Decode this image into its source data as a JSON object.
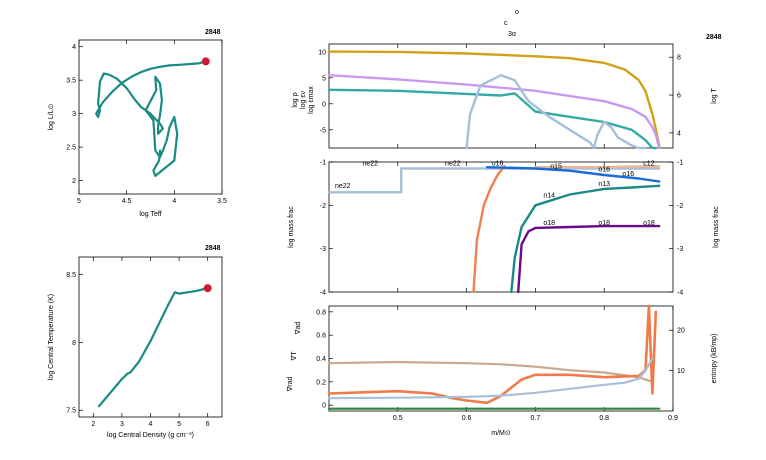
{
  "header": {
    "model_number_hr": "2848",
    "model_number_tc": "2848",
    "model_number_main": "2848",
    "top_annotation_line1": "o",
    "top_annotation_line2": "c",
    "top_annotation_line3": "3α"
  },
  "colors": {
    "teal": "#1a8a85",
    "red_dot": "#d01a3a",
    "logRho": "#c79af0",
    "epsNuc": "#33aaa3",
    "epsMax": "#a8bfd8",
    "logT": "#d4a01a",
    "ne22": "#a8bfd8",
    "c12": "#e8b898",
    "o16_cap": "#f08050",
    "n15": "#1a6ad8",
    "n14": "#1a8a85",
    "o18": "#6a0a8a",
    "grad_ad": "#c8a890",
    "grad_rad": "#f07a4a",
    "entropy": "#a8bfd8",
    "green_line": "#2a8a3a"
  },
  "chart_data": [
    {
      "id": "hr",
      "type": "line",
      "xlabel": "log Teff",
      "ylabel": "log L/L⊙",
      "xlim": [
        5.0,
        3.5
      ],
      "ylim": [
        1.8,
        4.1
      ],
      "xticks": [
        "5",
        "4.5",
        "4",
        "3.5"
      ],
      "yticks": [
        "2",
        "2.5",
        "3",
        "3.5",
        "4"
      ],
      "series": [
        {
          "x": [
            3.67,
            3.75,
            3.85,
            3.95,
            4.05,
            4.15,
            4.25,
            4.35,
            4.45,
            4.55,
            4.65,
            4.75,
            4.82,
            4.8,
            4.78,
            4.8,
            4.79,
            4.78,
            4.74,
            4.68,
            4.6,
            4.5,
            4.42,
            4.35,
            4.25,
            4.15,
            4.12,
            4.17,
            4.17,
            4.15,
            4.13,
            4.15,
            4.2,
            4.19,
            4.3,
            4.22,
            4.2,
            4.15,
            4.12,
            4.08,
            4.05,
            4.0,
            3.97,
            4.0,
            4.2,
            4.22,
            4.16,
            4.15
          ],
          "y": [
            3.78,
            3.75,
            3.74,
            3.73,
            3.72,
            3.7,
            3.67,
            3.62,
            3.55,
            3.46,
            3.33,
            3.17,
            3.0,
            2.95,
            3.05,
            3.15,
            3.3,
            3.48,
            3.6,
            3.58,
            3.52,
            3.38,
            3.22,
            3.1,
            3.0,
            2.85,
            2.78,
            2.7,
            2.82,
            2.98,
            3.2,
            3.45,
            3.55,
            3.35,
            3.05,
            2.9,
            2.45,
            2.35,
            2.45,
            2.6,
            2.8,
            2.95,
            2.7,
            2.3,
            2.07,
            2.15,
            2.3,
            2.45
          ]
        }
      ],
      "current_point": {
        "x": 3.67,
        "y": 3.78
      }
    },
    {
      "id": "tc_rhoc",
      "type": "line",
      "xlabel": "log Central Density (g cm⁻³)",
      "ylabel": "log Central Temperature (K)",
      "xlim": [
        1.5,
        6.5
      ],
      "ylim": [
        7.45,
        8.63
      ],
      "xticks": [
        "2",
        "3",
        "4",
        "5",
        "6"
      ],
      "yticks": [
        "7.5",
        "8",
        "8.5"
      ],
      "series": [
        {
          "x": [
            2.2,
            2.6,
            3.0,
            3.2,
            3.3,
            3.6,
            4.0,
            4.3,
            4.6,
            4.85,
            5.0,
            5.3,
            5.6,
            5.8,
            6.0
          ],
          "y": [
            7.53,
            7.63,
            7.73,
            7.77,
            7.78,
            7.86,
            8.01,
            8.14,
            8.27,
            8.37,
            8.36,
            8.37,
            8.38,
            8.39,
            8.4
          ]
        }
      ],
      "current_point": {
        "x": 6.0,
        "y": 8.4
      }
    },
    {
      "id": "profile_top",
      "type": "line",
      "xlim": [
        0.4,
        0.9
      ],
      "ylim": [
        -8.5,
        11.5
      ],
      "yticks": [
        "-5",
        "0",
        "5",
        "10"
      ],
      "ylim_right": [
        3.2,
        8.7
      ],
      "yticks_right": [
        "4",
        "6",
        "8"
      ],
      "ylabel_left": [
        "log ρ",
        "log εν",
        "log εmax"
      ],
      "ylabel_right": "log T",
      "series": [
        {
          "name": "log T",
          "axis": "right",
          "x": [
            0.4,
            0.5,
            0.6,
            0.7,
            0.75,
            0.8,
            0.83,
            0.85,
            0.86,
            0.87,
            0.875,
            0.88
          ],
          "y": [
            8.3,
            8.28,
            8.2,
            8.05,
            7.95,
            7.7,
            7.35,
            6.8,
            6.2,
            5.0,
            4.2,
            3.3
          ]
        },
        {
          "name": "log ρ",
          "axis": "left",
          "x": [
            0.4,
            0.5,
            0.6,
            0.7,
            0.8,
            0.84,
            0.86,
            0.87,
            0.875,
            0.88
          ],
          "y": [
            5.5,
            4.7,
            3.7,
            2.5,
            0.5,
            -1.0,
            -2.5,
            -4.5,
            -6.0,
            -8.5
          ]
        },
        {
          "name": "log εν",
          "axis": "left",
          "x": [
            0.4,
            0.5,
            0.6,
            0.65,
            0.66,
            0.67,
            0.7,
            0.75,
            0.8,
            0.84,
            0.86,
            0.87,
            0.875
          ],
          "y": [
            2.7,
            2.5,
            1.9,
            1.6,
            1.8,
            2.0,
            -1.5,
            -2.5,
            -3.5,
            -5.0,
            -7.0,
            -8.5,
            -8.5
          ]
        },
        {
          "name": "log εmax",
          "axis": "left",
          "x": [
            0.6,
            0.605,
            0.62,
            0.65,
            0.67,
            0.69,
            0.72,
            0.75,
            0.78,
            0.785,
            0.79,
            0.8,
            0.81,
            0.82,
            0.84,
            0.85,
            0.86
          ],
          "y": [
            -8.5,
            -2.0,
            3.5,
            5.5,
            4.5,
            0.5,
            -2.5,
            -5.0,
            -7.5,
            -8.5,
            -6.0,
            -3.5,
            -4.5,
            -6.5,
            -8.0,
            -8.5,
            -8.5
          ]
        }
      ]
    },
    {
      "id": "mass_frac",
      "type": "line",
      "xlim": [
        0.4,
        0.9
      ],
      "ylim": [
        -4,
        -1
      ],
      "yticks": [
        "-4",
        "-3",
        "-2",
        "-1"
      ],
      "ylabel": "log mass frac",
      "ylabel_right": "log mass frac",
      "series": [
        {
          "name": "ne22",
          "x": [
            0.4,
            0.505,
            0.505,
            0.6,
            0.7,
            0.8,
            0.86,
            0.88
          ],
          "y": [
            -1.7,
            -1.7,
            -1.15,
            -1.15,
            -1.15,
            -1.15,
            -1.15,
            -1.15
          ]
        },
        {
          "name": "c12",
          "x": [
            0.7,
            0.8,
            0.86,
            0.88
          ],
          "y": [
            -1.12,
            -1.12,
            -1.1,
            -1.1
          ]
        },
        {
          "name": "o16",
          "x": [
            0.61,
            0.615,
            0.625,
            0.635,
            0.645,
            0.655
          ],
          "y": [
            -4.0,
            -2.8,
            -2.0,
            -1.6,
            -1.3,
            -1.1
          ]
        },
        {
          "name": "n15",
          "x": [
            0.63,
            0.7,
            0.75,
            0.8,
            0.85,
            0.88
          ],
          "y": [
            -1.12,
            -1.15,
            -1.2,
            -1.3,
            -1.38,
            -1.45
          ]
        },
        {
          "name": "n14",
          "x": [
            0.665,
            0.67,
            0.68,
            0.7,
            0.75,
            0.8,
            0.85,
            0.88
          ],
          "y": [
            -4.0,
            -3.2,
            -2.5,
            -2.0,
            -1.75,
            -1.62,
            -1.58,
            -1.55
          ]
        },
        {
          "name": "o18",
          "x": [
            0.675,
            0.68,
            0.69,
            0.7,
            0.75,
            0.8,
            0.88
          ],
          "y": [
            -4.0,
            -2.9,
            -2.6,
            -2.52,
            -2.5,
            -2.48,
            -2.48
          ]
        }
      ],
      "labels": [
        {
          "text": "ne22",
          "x": 0.42,
          "y": -1.6
        },
        {
          "text": "ne22",
          "x": 0.46,
          "y": -1.08
        },
        {
          "text": "ne22",
          "x": 0.58,
          "y": -1.08
        },
        {
          "text": "o16",
          "x": 0.645,
          "y": -1.08
        },
        {
          "text": "c12",
          "x": 0.865,
          "y": -1.08
        },
        {
          "text": "n15",
          "x": 0.73,
          "y": -1.15
        },
        {
          "text": "o16",
          "x": 0.8,
          "y": -1.22
        },
        {
          "text": "o16",
          "x": 0.835,
          "y": -1.32
        },
        {
          "text": "n13",
          "x": 0.8,
          "y": -1.55
        },
        {
          "text": "n14",
          "x": 0.72,
          "y": -1.82
        },
        {
          "text": "o18",
          "x": 0.72,
          "y": -2.45
        },
        {
          "text": "o18",
          "x": 0.8,
          "y": -2.45
        },
        {
          "text": "o18",
          "x": 0.865,
          "y": -2.45
        }
      ]
    },
    {
      "id": "gradients",
      "type": "line",
      "xlabel": "m/M⊙",
      "xlim": [
        0.4,
        0.9
      ],
      "xticks": [
        "0.5",
        "0.6",
        "0.7",
        "0.8",
        "0.9"
      ],
      "ylim": [
        -0.05,
        0.85
      ],
      "yticks": [
        "0",
        "0.2",
        "0.4",
        "0.6",
        "0.8"
      ],
      "ylim_right": [
        0,
        26
      ],
      "yticks_right": [
        "10",
        "20"
      ],
      "ylabel_left": [
        "∇ad",
        "∇T",
        "∇rad"
      ],
      "ylabel_right": "entropy (kB/mp)",
      "series": [
        {
          "name": "∇ad",
          "x": [
            0.4,
            0.5,
            0.6,
            0.65,
            0.7,
            0.75,
            0.8,
            0.85,
            0.87
          ],
          "y": [
            0.36,
            0.37,
            0.36,
            0.35,
            0.33,
            0.3,
            0.28,
            0.24,
            0.2
          ]
        },
        {
          "name": "∇rad",
          "x": [
            0.4,
            0.45,
            0.5,
            0.55,
            0.58,
            0.6,
            0.63,
            0.65,
            0.68,
            0.7,
            0.75,
            0.8,
            0.85,
            0.86,
            0.865,
            0.87,
            0.875
          ],
          "y": [
            0.1,
            0.11,
            0.12,
            0.1,
            0.06,
            0.04,
            0.02,
            0.08,
            0.22,
            0.26,
            0.26,
            0.24,
            0.25,
            0.3,
            0.85,
            0.1,
            0.8
          ]
        },
        {
          "name": "entropy",
          "axis": "right",
          "x": [
            0.4,
            0.5,
            0.6,
            0.65,
            0.7,
            0.75,
            0.8,
            0.83,
            0.85,
            0.86,
            0.87
          ],
          "y": [
            3.2,
            3.3,
            3.5,
            3.8,
            4.5,
            5.5,
            6.5,
            7.0,
            8.0,
            10.0,
            13.0
          ]
        },
        {
          "name": "green",
          "x": [
            0.4,
            0.88
          ],
          "y": [
            -0.03,
            -0.03
          ]
        }
      ]
    }
  ]
}
